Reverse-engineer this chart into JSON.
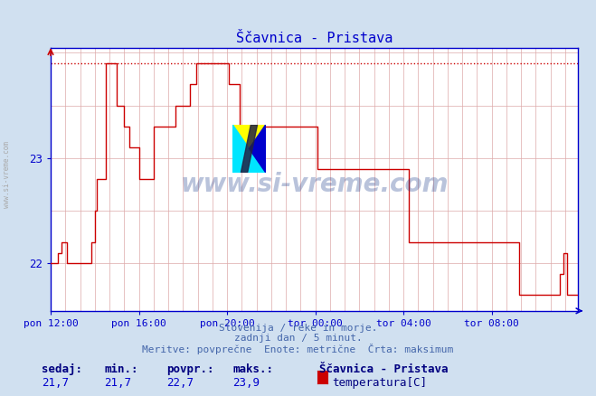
{
  "title": "Ščavnica - Pristava",
  "bg_color": "#d0e0f0",
  "plot_bg_color": "#ffffff",
  "line_color": "#cc0000",
  "grid_color": "#ddaaaa",
  "axis_color": "#0000cc",
  "text_color": "#000080",
  "subtitle_lines": [
    "Slovenija / reke in morje.",
    "zadnji dan / 5 minut.",
    "Meritve: povprečne  Enote: metrične  Črta: maksimum"
  ],
  "footer_labels": [
    "sedaj:",
    "min.:",
    "povpr.:",
    "maks.:"
  ],
  "footer_values": [
    "21,7",
    "21,7",
    "22,7",
    "23,9"
  ],
  "station_name": "Ščavnica - Pristava",
  "legend_label": "temperatura[C]",
  "legend_color": "#cc0000",
  "watermark": "www.si-vreme.com",
  "ylim_data": [
    21.55,
    24.05
  ],
  "yticks": [
    22,
    23
  ],
  "max_line_y": 23.9,
  "xticklabels": [
    "pon 12:00",
    "pon 16:00",
    "pon 20:00",
    "tor 00:00",
    "tor 04:00",
    "tor 08:00"
  ],
  "xtick_positions": [
    0,
    48,
    96,
    144,
    192,
    240
  ],
  "total_points": 288,
  "temperature_data": [
    22.0,
    22.0,
    22.0,
    22.0,
    22.1,
    22.1,
    22.2,
    22.2,
    22.2,
    22.0,
    22.0,
    22.0,
    22.0,
    22.0,
    22.0,
    22.0,
    22.0,
    22.0,
    22.0,
    22.0,
    22.0,
    22.0,
    22.2,
    22.2,
    22.5,
    22.8,
    22.8,
    22.8,
    22.8,
    22.8,
    23.9,
    23.9,
    23.9,
    23.9,
    23.9,
    23.9,
    23.5,
    23.5,
    23.5,
    23.5,
    23.3,
    23.3,
    23.3,
    23.1,
    23.1,
    23.1,
    23.1,
    23.1,
    22.8,
    22.8,
    22.8,
    22.8,
    22.8,
    22.8,
    22.8,
    22.8,
    23.3,
    23.3,
    23.3,
    23.3,
    23.3,
    23.3,
    23.3,
    23.3,
    23.3,
    23.3,
    23.3,
    23.3,
    23.5,
    23.5,
    23.5,
    23.5,
    23.5,
    23.5,
    23.5,
    23.5,
    23.7,
    23.7,
    23.7,
    23.9,
    23.9,
    23.9,
    23.9,
    23.9,
    23.9,
    23.9,
    23.9,
    23.9,
    23.9,
    23.9,
    23.9,
    23.9,
    23.9,
    23.9,
    23.9,
    23.9,
    23.9,
    23.7,
    23.7,
    23.7,
    23.7,
    23.7,
    23.7,
    23.3,
    23.3,
    23.3,
    23.3,
    23.3,
    23.3,
    23.3,
    23.3,
    23.3,
    23.3,
    23.3,
    23.3,
    23.3,
    23.3,
    23.3,
    23.3,
    23.3,
    23.3,
    23.3,
    23.3,
    23.3,
    23.3,
    23.3,
    23.3,
    23.3,
    23.3,
    23.3,
    23.3,
    23.3,
    23.3,
    23.3,
    23.3,
    23.3,
    23.3,
    23.3,
    23.3,
    23.3,
    23.3,
    23.3,
    23.3,
    23.3,
    23.3,
    22.9,
    22.9,
    22.9,
    22.9,
    22.9,
    22.9,
    22.9,
    22.9,
    22.9,
    22.9,
    22.9,
    22.9,
    22.9,
    22.9,
    22.9,
    22.9,
    22.9,
    22.9,
    22.9,
    22.9,
    22.9,
    22.9,
    22.9,
    22.9,
    22.9,
    22.9,
    22.9,
    22.9,
    22.9,
    22.9,
    22.9,
    22.9,
    22.9,
    22.9,
    22.9,
    22.9,
    22.9,
    22.9,
    22.9,
    22.9,
    22.9,
    22.9,
    22.9,
    22.9,
    22.9,
    22.9,
    22.9,
    22.9,
    22.9,
    22.9,
    22.2,
    22.2,
    22.2,
    22.2,
    22.2,
    22.2,
    22.2,
    22.2,
    22.2,
    22.2,
    22.2,
    22.2,
    22.2,
    22.2,
    22.2,
    22.2,
    22.2,
    22.2,
    22.2,
    22.2,
    22.2,
    22.2,
    22.2,
    22.2,
    22.2,
    22.2,
    22.2,
    22.2,
    22.2,
    22.2,
    22.2,
    22.2,
    22.2,
    22.2,
    22.2,
    22.2,
    22.2,
    22.2,
    22.2,
    22.2,
    22.2,
    22.2,
    22.2,
    22.2,
    22.2,
    22.2,
    22.2,
    22.2,
    22.2,
    22.2,
    22.2,
    22.2,
    22.2,
    22.2,
    22.2,
    22.2,
    22.2,
    22.2,
    22.2,
    22.2,
    21.7,
    21.7,
    21.7,
    21.7,
    21.7,
    21.7,
    21.7,
    21.7,
    21.7,
    21.7,
    21.7,
    21.7,
    21.7,
    21.7,
    21.7,
    21.7,
    21.7,
    21.7,
    21.7,
    21.7,
    21.7,
    21.7,
    21.9,
    21.9,
    22.1,
    22.1,
    21.7,
    21.7,
    21.7,
    21.7,
    21.7,
    21.7,
    21.7,
    21.7
  ]
}
